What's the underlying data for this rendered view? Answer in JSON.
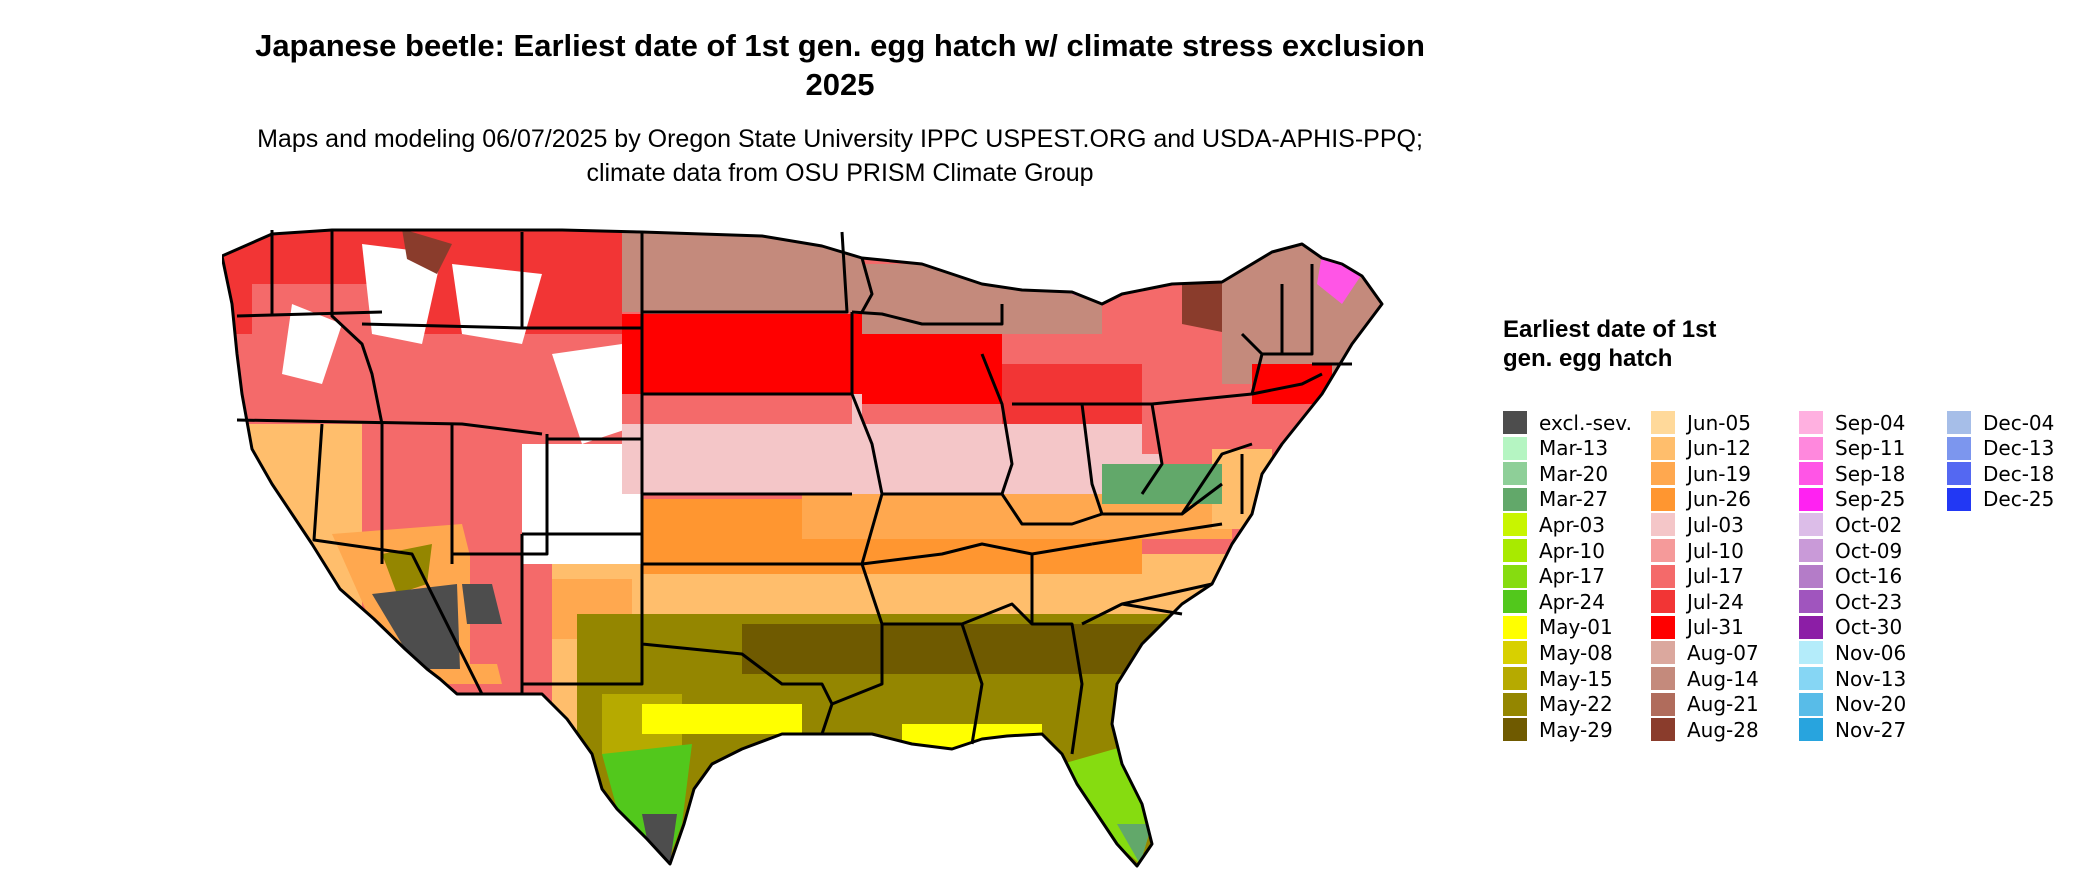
{
  "title": "Japanese beetle: Earliest date of 1st gen. egg hatch w/ climate stress exclusion 2025",
  "subtitle": "Maps and modeling 06/07/2025 by Oregon State University IPPC USPEST.ORG and USDA-APHIS-PPQ; climate data from OSU PRISM Climate Group",
  "legend": {
    "title": "Earliest date of 1st gen. egg hatch",
    "items": [
      {
        "label": "excl.-sev.",
        "color": "#4d4d4d"
      },
      {
        "label": "Mar-13",
        "color": "#b5f5c2"
      },
      {
        "label": "Mar-20",
        "color": "#8ecf98"
      },
      {
        "label": "Mar-27",
        "color": "#62a86a"
      },
      {
        "label": "Apr-03",
        "color": "#c8f500"
      },
      {
        "label": "Apr-10",
        "color": "#a8ea00"
      },
      {
        "label": "Apr-17",
        "color": "#86dc10"
      },
      {
        "label": "Apr-24",
        "color": "#52c81c"
      },
      {
        "label": "May-01",
        "color": "#ffff00"
      },
      {
        "label": "May-08",
        "color": "#d8d000"
      },
      {
        "label": "May-15",
        "color": "#b6aa00"
      },
      {
        "label": "May-22",
        "color": "#948600"
      },
      {
        "label": "May-29",
        "color": "#6f5a00"
      },
      {
        "label": "Jun-05",
        "color": "#ffd99a"
      },
      {
        "label": "Jun-12",
        "color": "#ffbe6c"
      },
      {
        "label": "Jun-19",
        "color": "#ffa84f"
      },
      {
        "label": "Jun-26",
        "color": "#ff9630"
      },
      {
        "label": "Jul-03",
        "color": "#f4c6c8"
      },
      {
        "label": "Jul-10",
        "color": "#f59a9a"
      },
      {
        "label": "Jul-17",
        "color": "#f46a6a"
      },
      {
        "label": "Jul-24",
        "color": "#f23535"
      },
      {
        "label": "Jul-31",
        "color": "#ff0000"
      },
      {
        "label": "Aug-07",
        "color": "#dba89e"
      },
      {
        "label": "Aug-14",
        "color": "#c48a7c"
      },
      {
        "label": "Aug-21",
        "color": "#b06c5c"
      },
      {
        "label": "Aug-28",
        "color": "#8a3c2c"
      },
      {
        "label": "Sep-04",
        "color": "#ffb0e0"
      },
      {
        "label": "Sep-11",
        "color": "#ff88dd"
      },
      {
        "label": "Sep-18",
        "color": "#ff55e6"
      },
      {
        "label": "Sep-25",
        "color": "#ff22f2"
      },
      {
        "label": "Oct-02",
        "color": "#dcbde8"
      },
      {
        "label": "Oct-09",
        "color": "#c99ad8"
      },
      {
        "label": "Oct-16",
        "color": "#b47cc8"
      },
      {
        "label": "Oct-23",
        "color": "#a055be"
      },
      {
        "label": "Oct-30",
        "color": "#8c1ea6"
      },
      {
        "label": "Nov-06",
        "color": "#b4ecfa"
      },
      {
        "label": "Nov-13",
        "color": "#86d6f4"
      },
      {
        "label": "Nov-20",
        "color": "#58bce8"
      },
      {
        "label": "Nov-27",
        "color": "#28a4de"
      },
      {
        "label": "Dec-04",
        "color": "#a6bee8"
      },
      {
        "label": "Dec-13",
        "color": "#7c96ee"
      },
      {
        "label": "Dec-18",
        "color": "#5468f2"
      },
      {
        "label": "Dec-25",
        "color": "#2238f4"
      }
    ]
  },
  "map": {
    "colors": {
      "outside_range": "#ffffff",
      "excluded": "#4d4d4d",
      "region_colors": [
        "#ffd99a",
        "#ffbe6c",
        "#ffa84f",
        "#ff9630",
        "#f4c6c8",
        "#f46a6a",
        "#ff0000",
        "#c48a7c",
        "#8a3c2c",
        "#ff55e6",
        "#948600",
        "#6f5a00",
        "#52c81c",
        "#ffff00",
        "#62a86a"
      ],
      "border": "#000000"
    }
  }
}
